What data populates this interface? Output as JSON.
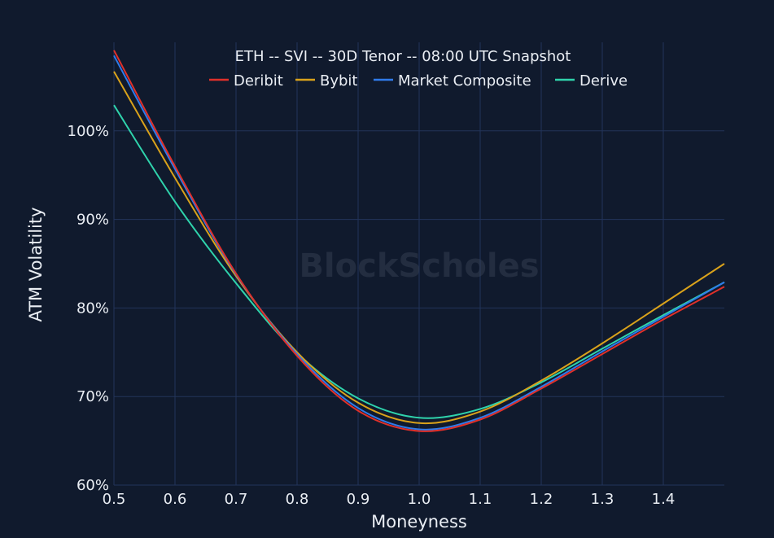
{
  "watermark": "BlockScholes",
  "chart_data": {
    "type": "line",
    "title": "ETH -- SVI -- 30D Tenor -- 08:00 UTC Snapshot",
    "xlabel": "Moneyness",
    "ylabel": "ATM Volatility",
    "xlim": [
      0.5,
      1.5
    ],
    "ylim": [
      60,
      110
    ],
    "x_ticks": [
      0.5,
      0.6,
      0.7,
      0.8,
      0.9,
      1.0,
      1.1,
      1.2,
      1.3,
      1.4
    ],
    "x_tick_labels": [
      "0.5",
      "0.6",
      "0.7",
      "0.8",
      "0.9",
      "1.0",
      "1.1",
      "1.2",
      "1.3",
      "1.4"
    ],
    "y_ticks": [
      60,
      70,
      80,
      90,
      100
    ],
    "y_tick_labels": [
      "60%",
      "70%",
      "80%",
      "90%",
      "100%"
    ],
    "grid": true,
    "legend_position": "top",
    "x": [
      0.5,
      0.6,
      0.7,
      0.8,
      0.9,
      1.0,
      1.1,
      1.2,
      1.3,
      1.4,
      1.5
    ],
    "series": [
      {
        "name": "Deribit",
        "color": "#e0302a",
        "values": [
          109.1,
          96.0,
          83.9,
          74.6,
          68.4,
          66.1,
          67.4,
          70.9,
          74.8,
          78.7,
          82.4
        ]
      },
      {
        "name": "Bybit",
        "color": "#d9a21b",
        "values": [
          106.7,
          94.7,
          83.6,
          75.0,
          69.3,
          67.0,
          68.3,
          71.8,
          76.0,
          80.5,
          85.0
        ]
      },
      {
        "name": "Market Composite",
        "color": "#2f7bea",
        "values": [
          108.5,
          95.7,
          83.8,
          74.8,
          68.7,
          66.3,
          67.6,
          71.1,
          75.1,
          79.0,
          82.9
        ]
      },
      {
        "name": "Derive",
        "color": "#2fd3ac",
        "values": [
          102.9,
          92.0,
          82.8,
          74.9,
          69.8,
          67.6,
          68.6,
          71.6,
          75.4,
          79.2,
          82.9
        ]
      }
    ]
  }
}
